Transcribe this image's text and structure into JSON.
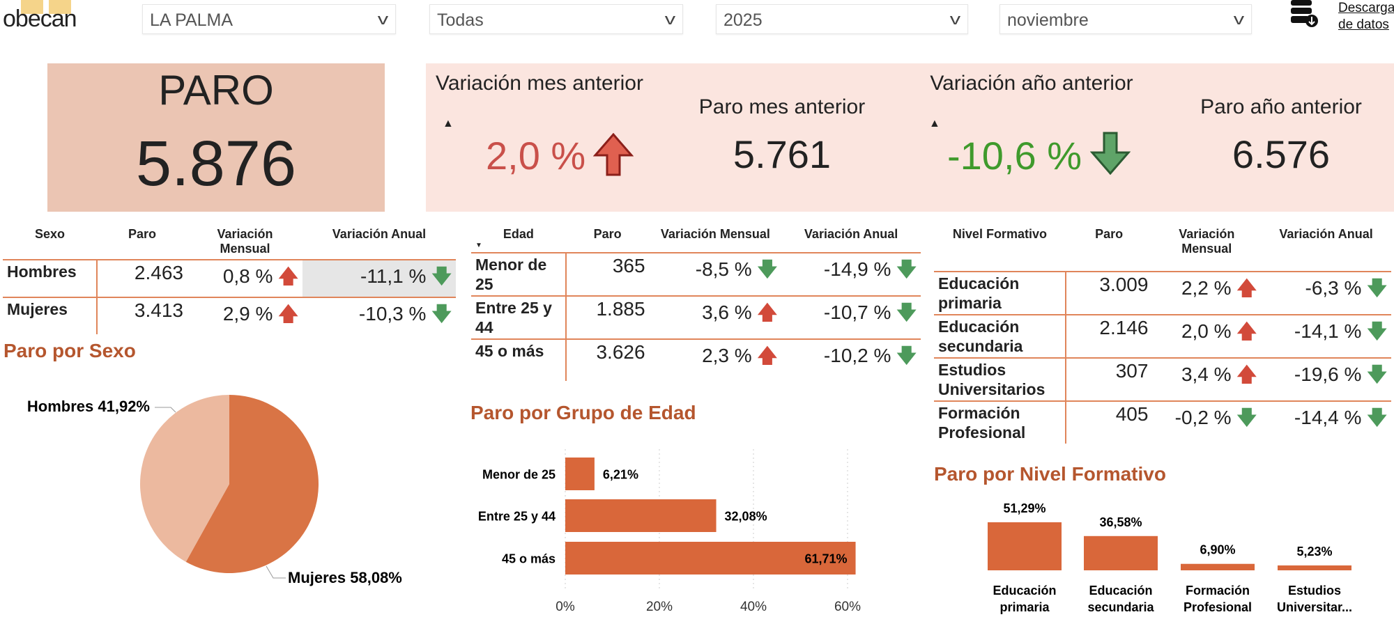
{
  "header": {
    "logo": "obecan",
    "filters": [
      "LA PALMA",
      "Todas",
      "2025",
      "noviembre"
    ],
    "download": [
      "Descarga",
      "de datos"
    ],
    "download_icon": "database-download-icon"
  },
  "kpis": {
    "paro_label": "PARO",
    "paro_value": "5.876",
    "items": [
      {
        "label": "Variación mes anterior",
        "value": "2,0 %",
        "trend": "up",
        "color": "#c9504a"
      },
      {
        "label": "Paro mes anterior",
        "value": "5.761"
      },
      {
        "label": "Variación año anterior",
        "value": "-10,6 %",
        "trend": "down",
        "color": "#3f9a2c"
      },
      {
        "label": "Paro año anterior",
        "value": "6.576"
      }
    ]
  },
  "colors": {
    "accent": "#d9673a",
    "title": "#b5562e",
    "up": "#d24a3a",
    "down": "#4d9a5b",
    "paro_card": "#ebc5b3",
    "kpi_panel": "#fbe5df"
  },
  "tables": [
    {
      "headers": [
        "Sexo",
        "Paro",
        "Variación Mensual",
        "Variación Anual"
      ],
      "rows": [
        [
          "Hombres",
          "2.463",
          "0,8 %",
          "up",
          "-11,1 %",
          "down"
        ],
        [
          "Mujeres",
          "3.413",
          "2,9 %",
          "up",
          "-10,3 %",
          "down"
        ]
      ]
    },
    {
      "headers": [
        "Edad",
        "Paro",
        "Variación Mensual",
        "Variación Anual"
      ],
      "rows": [
        [
          "Menor de 25",
          "365",
          "-8,5 %",
          "down",
          "-14,9 %",
          "down"
        ],
        [
          "Entre 25 y 44",
          "1.885",
          "3,6 %",
          "up",
          "-10,7 %",
          "down"
        ],
        [
          "45 o más",
          "3.626",
          "2,3 %",
          "up",
          "-10,2 %",
          "down"
        ]
      ]
    },
    {
      "headers": [
        "Nivel Formativo",
        "Paro",
        "Variación Mensual",
        "Variación Anual"
      ],
      "rows": [
        [
          "Educación primaria",
          "3.009",
          "2,2 %",
          "up",
          "-6,3 %",
          "down"
        ],
        [
          "Educación secundaria",
          "2.146",
          "2,0 %",
          "up",
          "-14,1 %",
          "down"
        ],
        [
          "Estudios Universitarios",
          "307",
          "3,4 %",
          "up",
          "-19,6 %",
          "down"
        ],
        [
          "Formación Profesional",
          "405",
          "-0,2 %",
          "down",
          "-14,4 %",
          "down"
        ]
      ]
    }
  ],
  "chart_data": [
    {
      "type": "pie",
      "title": "Paro por Sexo",
      "slices": [
        {
          "label": "Hombres",
          "value": 41.92,
          "text": "Hombres 41,92%",
          "color": "#ecb99f"
        },
        {
          "label": "Mujeres",
          "value": 58.08,
          "text": "Mujeres 58,08%",
          "color": "#d97445"
        }
      ]
    },
    {
      "type": "bar",
      "orientation": "horizontal",
      "title": "Paro por Grupo de Edad",
      "categories": [
        "Menor de 25",
        "Entre 25 y 44",
        "45 o más"
      ],
      "values": [
        6.21,
        32.08,
        61.71
      ],
      "labels": [
        "6,21%",
        "32,08%",
        "61,71%"
      ],
      "xlim": [
        0,
        62
      ],
      "ticks": [
        "0%",
        "20%",
        "40%",
        "60%"
      ],
      "tick_values": [
        0,
        20,
        40,
        60
      ],
      "grid": true
    },
    {
      "type": "bar",
      "title": "Paro por Nivel Formativo",
      "categories": [
        [
          "Educación",
          "primaria"
        ],
        [
          "Educación",
          "secundaria"
        ],
        [
          "Formación",
          "Profesional"
        ],
        [
          "Estudios",
          "Universitar..."
        ]
      ],
      "values": [
        51.29,
        36.58,
        6.9,
        5.23
      ],
      "labels": [
        "51,29%",
        "36,58%",
        "6,90%",
        "5,23%"
      ]
    }
  ]
}
